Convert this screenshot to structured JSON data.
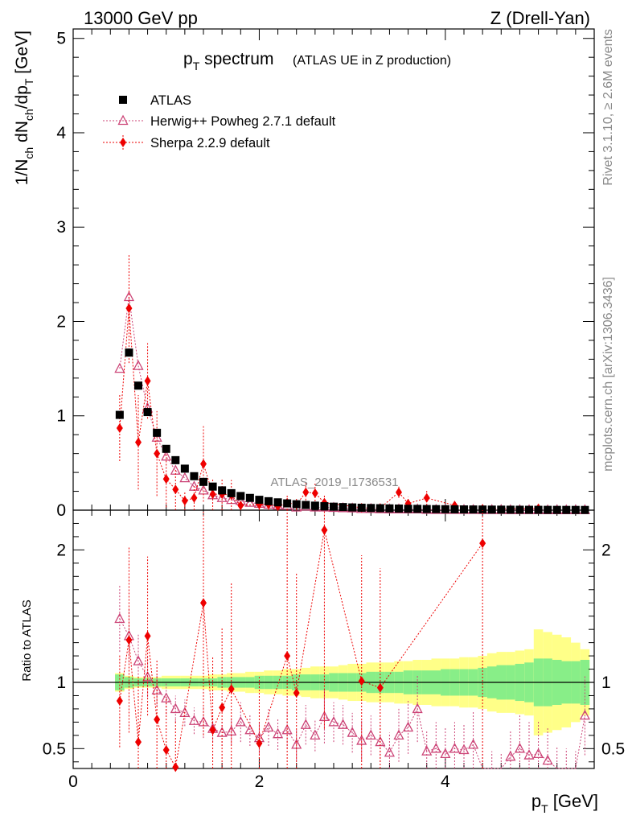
{
  "header": {
    "left": "13000 GeV pp",
    "right": "Z (Drell-Yan)"
  },
  "side_labels": {
    "top": "Rivet 3.1.10, ≥ 2.6M events",
    "bottom": "mcplots.cern.ch [arXiv:1306.3436]"
  },
  "colors": {
    "band_inner": "#88ee88",
    "band_outer": "#ffff88",
    "data": "#000000",
    "herwig": "#cc4477",
    "sherpa": "#ee0000"
  },
  "chart_data": [
    {
      "type": "scatter",
      "title": "p_T spectrum",
      "title_parts": {
        "main": "p",
        "sub": "T",
        "rest": " spectrum",
        "note": "(ATLAS UE in Z production)"
      },
      "ylabel": "1/N_ch dN_ch/dp_T [GeV]",
      "ylabel_parts": [
        "1/N",
        "ch",
        " dN",
        "ch",
        "/dp",
        "T",
        " [GeV]"
      ],
      "xlim": [
        0,
        5.6
      ],
      "ylim": [
        0,
        5.1
      ],
      "yticks": [
        0,
        1,
        2,
        3,
        4,
        5
      ],
      "watermark": "ATLAS_2019_I1736531",
      "legend": {
        "position": "top-left",
        "entries": [
          "ATLAS",
          "Herwig++ Powheg 2.7.1 default",
          "Sherpa 2.2.9 default"
        ]
      },
      "series": [
        {
          "name": "ATLAS",
          "marker": "square",
          "x": [
            0.5,
            0.6,
            0.7,
            0.8,
            0.9,
            1.0,
            1.1,
            1.2,
            1.3,
            1.4,
            1.5,
            1.6,
            1.7,
            1.8,
            1.9,
            2.0,
            2.1,
            2.2,
            2.3,
            2.4,
            2.5,
            2.6,
            2.7,
            2.8,
            2.9,
            3.0,
            3.1,
            3.2,
            3.3,
            3.4,
            3.5,
            3.6,
            3.7,
            3.8,
            3.9,
            4.0,
            4.1,
            4.2,
            4.3,
            4.4,
            4.5,
            4.6,
            4.7,
            4.8,
            4.9,
            5.0,
            5.1,
            5.2,
            5.3,
            5.4,
            5.5
          ],
          "y": [
            1.01,
            1.67,
            1.32,
            1.04,
            0.82,
            0.65,
            0.53,
            0.44,
            0.36,
            0.3,
            0.25,
            0.21,
            0.18,
            0.15,
            0.13,
            0.11,
            0.095,
            0.083,
            0.072,
            0.063,
            0.055,
            0.048,
            0.042,
            0.037,
            0.033,
            0.029,
            0.026,
            0.023,
            0.021,
            0.019,
            0.017,
            0.015,
            0.014,
            0.012,
            0.011,
            0.01,
            0.009,
            0.008,
            0.0075,
            0.007,
            0.006,
            0.0055,
            0.005,
            0.0045,
            0.004,
            0.0037,
            0.0034,
            0.0031,
            0.0028,
            0.0026,
            0.0024
          ]
        },
        {
          "name": "Herwig++ Powheg 2.7.1 default",
          "marker": "open-triangle",
          "x": [
            0.5,
            0.6,
            0.7,
            0.8,
            0.9,
            1.0,
            1.1,
            1.2,
            1.3,
            1.4,
            1.5,
            1.6,
            1.7,
            1.8,
            1.9,
            2.0,
            2.1,
            2.2,
            2.3,
            2.4,
            2.5,
            2.6,
            2.7,
            2.8,
            2.9,
            3.0,
            3.1,
            3.2,
            3.3,
            3.4,
            3.5,
            3.6,
            3.7,
            3.8,
            3.9,
            4.0,
            4.1,
            4.2,
            4.3,
            4.4,
            4.5,
            4.6,
            4.7,
            4.8,
            4.9,
            5.0,
            5.1,
            5.2,
            5.3,
            5.4,
            5.5
          ],
          "y": [
            1.5,
            2.26,
            1.53,
            1.08,
            0.77,
            0.57,
            0.42,
            0.34,
            0.25,
            0.21,
            0.16,
            0.13,
            0.11,
            0.1,
            0.08,
            0.07,
            0.06,
            0.05,
            0.05,
            0.03,
            0.04,
            0.03,
            0.03,
            0.026,
            0.023,
            0.02,
            0.015,
            0.015,
            0.012,
            0.01,
            0.01,
            0.01,
            0.01,
            0.006,
            0.005,
            0.004,
            0.004,
            0.004,
            0.004,
            0.003,
            0.003,
            0.003,
            0.002,
            0.002,
            0.002,
            0.002,
            0.001,
            0.001,
            0.001,
            0.001,
            0.002
          ]
        },
        {
          "name": "Sherpa 2.2.9 default",
          "marker": "filled-diamond",
          "x": [
            0.5,
            0.6,
            0.7,
            0.8,
            0.9,
            1.0,
            1.1,
            1.2,
            1.3,
            1.4,
            1.5,
            1.6,
            1.7,
            1.8,
            2.0,
            2.1,
            2.2,
            2.3,
            2.4,
            2.5,
            2.6,
            2.7,
            3.1,
            3.3,
            3.5,
            3.6,
            3.8,
            4.1,
            4.4,
            5.0
          ],
          "y": [
            0.87,
            2.14,
            0.72,
            1.37,
            0.6,
            0.33,
            0.22,
            0.1,
            0.13,
            0.49,
            0.17,
            0.17,
            0.16,
            0.05,
            0.06,
            0.06,
            0.04,
            0.08,
            0.06,
            0.19,
            0.18,
            0.08,
            0.026,
            0.023,
            0.19,
            0.07,
            0.13,
            0.05,
            0.015,
            0.02
          ],
          "err": [
            0.35,
            0.58,
            0.5,
            0.4,
            0.45,
            0.3,
            0.22,
            0.1,
            0.13,
            0.4,
            0.17,
            0.17,
            0.16,
            0.05,
            0.06,
            0.06,
            0.04,
            0.08,
            0.06,
            0.12,
            0.12,
            0.08,
            0.026,
            0.023,
            0.06,
            0.07,
            0.08,
            0.05,
            0.015,
            0.02
          ]
        }
      ]
    },
    {
      "type": "scatter",
      "ylabel": "Ratio to ATLAS",
      "xlabel": "p_T [GeV]",
      "xlabel_parts": {
        "main": "p",
        "sub": "T",
        "rest": " [GeV]"
      },
      "xlim": [
        0,
        5.6
      ],
      "ylim": [
        0.35,
        2.3
      ],
      "xticks": [
        0,
        2,
        4
      ],
      "yticks": [
        0.5,
        1,
        2
      ],
      "reference": 1,
      "bands": {
        "x": [
          0.5,
          0.6,
          0.7,
          0.8,
          0.9,
          1.0,
          1.1,
          1.2,
          1.3,
          1.4,
          1.5,
          1.6,
          1.7,
          1.8,
          1.9,
          2.0,
          2.1,
          2.2,
          2.3,
          2.4,
          2.5,
          2.6,
          2.7,
          2.8,
          2.9,
          3.0,
          3.1,
          3.2,
          3.3,
          3.4,
          3.5,
          3.6,
          3.7,
          3.8,
          3.9,
          4.0,
          4.1,
          4.2,
          4.3,
          4.4,
          4.5,
          4.6,
          4.7,
          4.8,
          4.9,
          5.0,
          5.1,
          5.2,
          5.3,
          5.4,
          5.5
        ],
        "inner": [
          0.06,
          0.04,
          0.03,
          0.03,
          0.03,
          0.03,
          0.03,
          0.03,
          0.03,
          0.03,
          0.03,
          0.04,
          0.04,
          0.04,
          0.04,
          0.05,
          0.05,
          0.05,
          0.05,
          0.06,
          0.06,
          0.06,
          0.06,
          0.07,
          0.07,
          0.07,
          0.07,
          0.08,
          0.08,
          0.08,
          0.08,
          0.09,
          0.09,
          0.09,
          0.09,
          0.1,
          0.1,
          0.1,
          0.1,
          0.11,
          0.12,
          0.13,
          0.13,
          0.14,
          0.15,
          0.18,
          0.18,
          0.17,
          0.16,
          0.16,
          0.17
        ],
        "outer": [
          0.07,
          0.05,
          0.04,
          0.04,
          0.04,
          0.05,
          0.05,
          0.05,
          0.05,
          0.05,
          0.06,
          0.06,
          0.07,
          0.07,
          0.08,
          0.08,
          0.09,
          0.09,
          0.1,
          0.1,
          0.11,
          0.12,
          0.12,
          0.12,
          0.13,
          0.14,
          0.14,
          0.15,
          0.15,
          0.15,
          0.16,
          0.16,
          0.17,
          0.17,
          0.18,
          0.18,
          0.18,
          0.19,
          0.19,
          0.2,
          0.22,
          0.23,
          0.23,
          0.24,
          0.25,
          0.4,
          0.38,
          0.36,
          0.34,
          0.3,
          0.25
        ]
      },
      "series": [
        {
          "name": "Herwig++ Powheg 2.7.1 default",
          "marker": "open-triangle",
          "x": [
            0.5,
            0.6,
            0.7,
            0.8,
            0.9,
            1.0,
            1.1,
            1.2,
            1.3,
            1.4,
            1.5,
            1.6,
            1.7,
            1.8,
            1.9,
            2.0,
            2.1,
            2.2,
            2.3,
            2.4,
            2.5,
            2.6,
            2.7,
            2.8,
            2.9,
            3.0,
            3.1,
            3.2,
            3.3,
            3.4,
            3.5,
            3.6,
            3.7,
            3.8,
            3.9,
            4.0,
            4.1,
            4.2,
            4.3,
            4.4,
            4.5,
            4.6,
            4.7,
            4.8,
            4.9,
            5.0,
            5.1,
            5.2,
            5.3,
            5.4,
            5.5
          ],
          "y": [
            1.48,
            1.35,
            1.16,
            1.04,
            0.94,
            0.88,
            0.8,
            0.77,
            0.71,
            0.7,
            0.65,
            0.62,
            0.63,
            0.7,
            0.64,
            0.58,
            0.66,
            0.61,
            0.64,
            0.53,
            0.68,
            0.6,
            0.74,
            0.7,
            0.68,
            0.62,
            0.56,
            0.6,
            0.55,
            0.47,
            0.6,
            0.66,
            0.8,
            0.48,
            0.5,
            0.46,
            0.5,
            0.49,
            0.53,
            0.31,
            0.28,
            0.26,
            0.44,
            0.5,
            0.45,
            0.46,
            0.41,
            0.32,
            0.3,
            0.28,
            0.75
          ],
          "err": [
            0.25,
            0.2,
            0.2,
            0.15,
            0.12,
            0.12,
            0.1,
            0.1,
            0.1,
            0.12,
            0.1,
            0.1,
            0.1,
            0.15,
            0.12,
            0.12,
            0.14,
            0.12,
            0.14,
            0.12,
            0.15,
            0.12,
            0.2,
            0.15,
            0.15,
            0.15,
            0.15,
            0.15,
            0.15,
            0.15,
            0.2,
            0.2,
            0.25,
            0.15,
            0.2,
            0.2,
            0.2,
            0.2,
            0.25,
            0.2,
            0.2,
            0.2,
            0.2,
            0.25,
            0.25,
            0.25,
            0.25,
            0.2,
            0.2,
            0.2,
            0.3
          ]
        },
        {
          "name": "Sherpa 2.2.9 default",
          "marker": "filled-diamond",
          "x": [
            0.5,
            0.6,
            0.7,
            0.8,
            0.9,
            1.0,
            1.1,
            1.4,
            1.5,
            1.6,
            1.7,
            2.0,
            2.3,
            2.4,
            2.7,
            3.1,
            3.3,
            4.4
          ],
          "y": [
            0.86,
            1.32,
            0.55,
            1.35,
            0.72,
            0.49,
            0.36,
            1.6,
            0.64,
            0.81,
            0.95,
            0.54,
            1.2,
            0.92,
            2.15,
            1.01,
            0.96,
            2.05
          ],
          "err": [
            0.35,
            0.7,
            0.5,
            0.6,
            0.45,
            0.4,
            0.36,
            1.0,
            0.55,
            0.6,
            0.8,
            0.5,
            1.1,
            0.9,
            1.5,
            0.95,
            0.9,
            1.8
          ]
        }
      ]
    }
  ]
}
